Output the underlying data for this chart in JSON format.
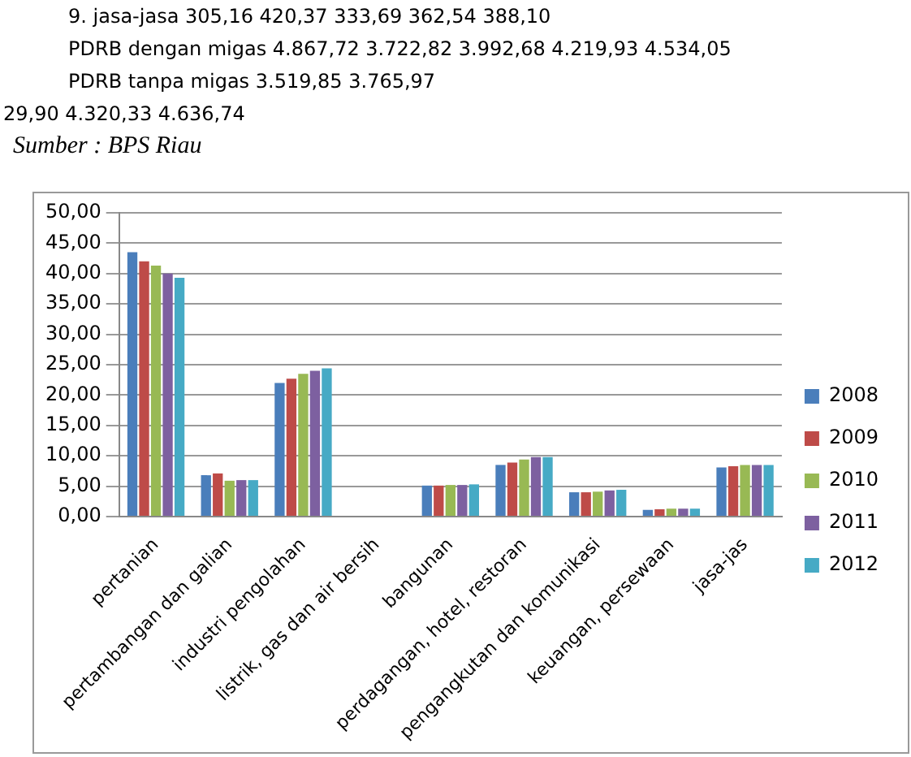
{
  "chart_data": {
    "type": "bar",
    "annotations": [
      "9. jasa-jasa 305,16 420,37 333,69 362,54 388,10",
      "PDRB dengan migas 4.867,72 3.722,82 3.992,68 4.219,93 4.534,05",
      "PDRB tanpa migas 3.519,85 3.765,97",
      "29,90 4.320,33 4.636,74",
      "Sumber : BPS Riau"
    ],
    "categories": [
      "pertanian",
      "pertambangan dan galian",
      "industri pengolahan",
      "listrik, gas dan air bersih",
      "bangunan",
      "perdagangan, hotel, restoran",
      "pengangkutan dan komunikasi",
      "keuangan, persewaan",
      "jasa-jas"
    ],
    "series": [
      {
        "name": "2008",
        "color": "#4a7ebb",
        "values": [
          43.5,
          6.8,
          22.0,
          null,
          5.1,
          8.5,
          4.0,
          1.1,
          8.1
        ]
      },
      {
        "name": "2009",
        "color": "#be4b48",
        "values": [
          42.0,
          7.1,
          22.7,
          null,
          5.1,
          8.9,
          4.0,
          1.2,
          8.3
        ]
      },
      {
        "name": "2010",
        "color": "#98b954",
        "values": [
          41.3,
          5.9,
          23.5,
          null,
          5.2,
          9.4,
          4.1,
          1.3,
          8.5
        ]
      },
      {
        "name": "2011",
        "color": "#7d60a0",
        "values": [
          40.0,
          6.0,
          24.0,
          null,
          5.2,
          9.8,
          4.3,
          1.3,
          8.5
        ]
      },
      {
        "name": "2012",
        "color": "#46aac5",
        "values": [
          39.3,
          6.0,
          24.4,
          null,
          5.3,
          9.8,
          4.4,
          1.3,
          8.5
        ]
      }
    ],
    "ylim": [
      0,
      50
    ],
    "yticks": [
      {
        "value": 0,
        "label": "0,00"
      },
      {
        "value": 5,
        "label": "5,00"
      },
      {
        "value": 10,
        "label": "10,00"
      },
      {
        "value": 15,
        "label": "15,00"
      },
      {
        "value": 20,
        "label": "20,00"
      },
      {
        "value": 25,
        "label": "25,00"
      },
      {
        "value": 30,
        "label": "30,00"
      },
      {
        "value": 35,
        "label": "35,00"
      },
      {
        "value": 40,
        "label": "40,00"
      },
      {
        "value": 45,
        "label": "45,00"
      },
      {
        "value": 50,
        "label": "50,00"
      }
    ],
    "grid": "y",
    "legend": "right"
  }
}
